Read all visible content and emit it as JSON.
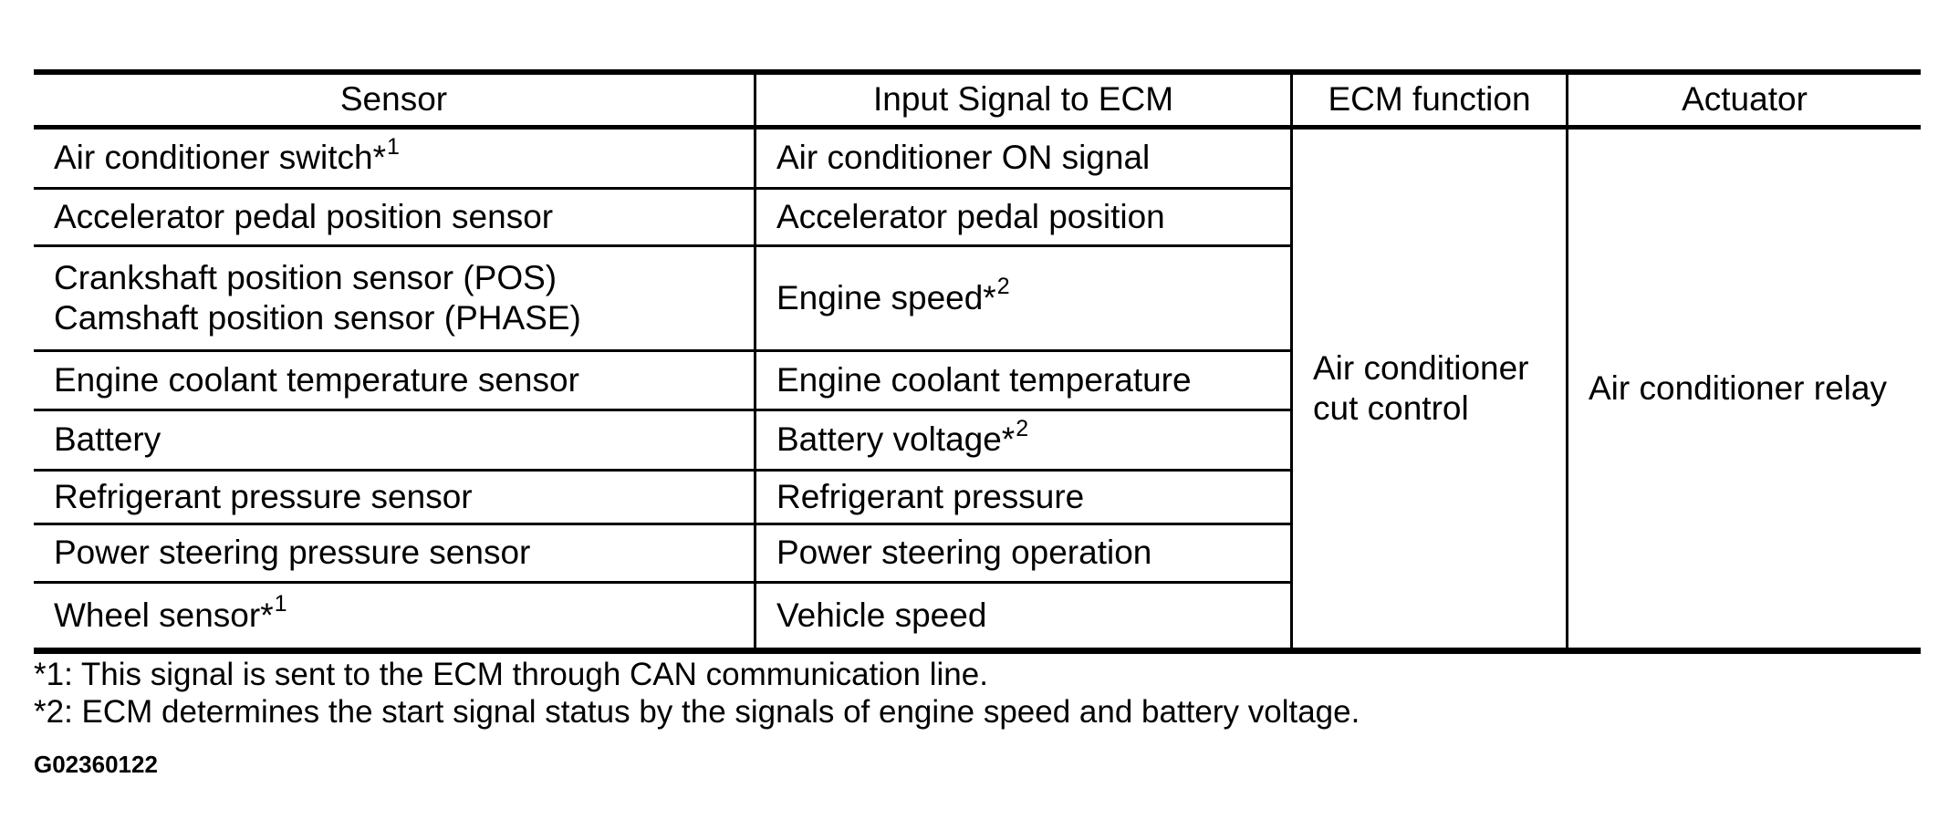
{
  "table": {
    "headers": {
      "sensor": "Sensor",
      "input_signal": "Input Signal to ECM",
      "ecm_function": "ECM function",
      "actuator": "Actuator"
    },
    "rows": [
      {
        "sensor": "Air conditioner switch*",
        "sensor_sup": "1",
        "signal": "Air conditioner ON signal"
      },
      {
        "sensor": "Accelerator pedal position sensor",
        "signal": "Accelerator pedal position"
      },
      {
        "sensor_lines": [
          "Crankshaft position sensor (POS)",
          "Camshaft position sensor (PHASE)"
        ],
        "signal": "Engine speed*",
        "signal_sup": "2"
      },
      {
        "sensor": "Engine coolant temperature sensor",
        "signal": "Engine coolant temperature"
      },
      {
        "sensor": "Battery",
        "signal": "Battery voltage*",
        "signal_sup": "2"
      },
      {
        "sensor": "Refrigerant pressure sensor",
        "signal": "Refrigerant pressure"
      },
      {
        "sensor": "Power steering pressure sensor",
        "signal": "Power steering operation"
      },
      {
        "sensor": "Wheel sensor*",
        "sensor_sup": "1",
        "signal": "Vehicle speed"
      }
    ],
    "merged": {
      "ecm_function_lines": [
        "Air conditioner",
        "cut control"
      ],
      "actuator": "Air conditioner relay"
    }
  },
  "footnotes": [
    "*1: This signal is sent to the ECM through CAN communication line.",
    "*2: ECM determines the start signal status by the signals of engine speed and battery voltage."
  ],
  "figure_code": "G02360122",
  "colors": {
    "background": "#ffffff",
    "text": "#000000",
    "line": "#000000"
  }
}
